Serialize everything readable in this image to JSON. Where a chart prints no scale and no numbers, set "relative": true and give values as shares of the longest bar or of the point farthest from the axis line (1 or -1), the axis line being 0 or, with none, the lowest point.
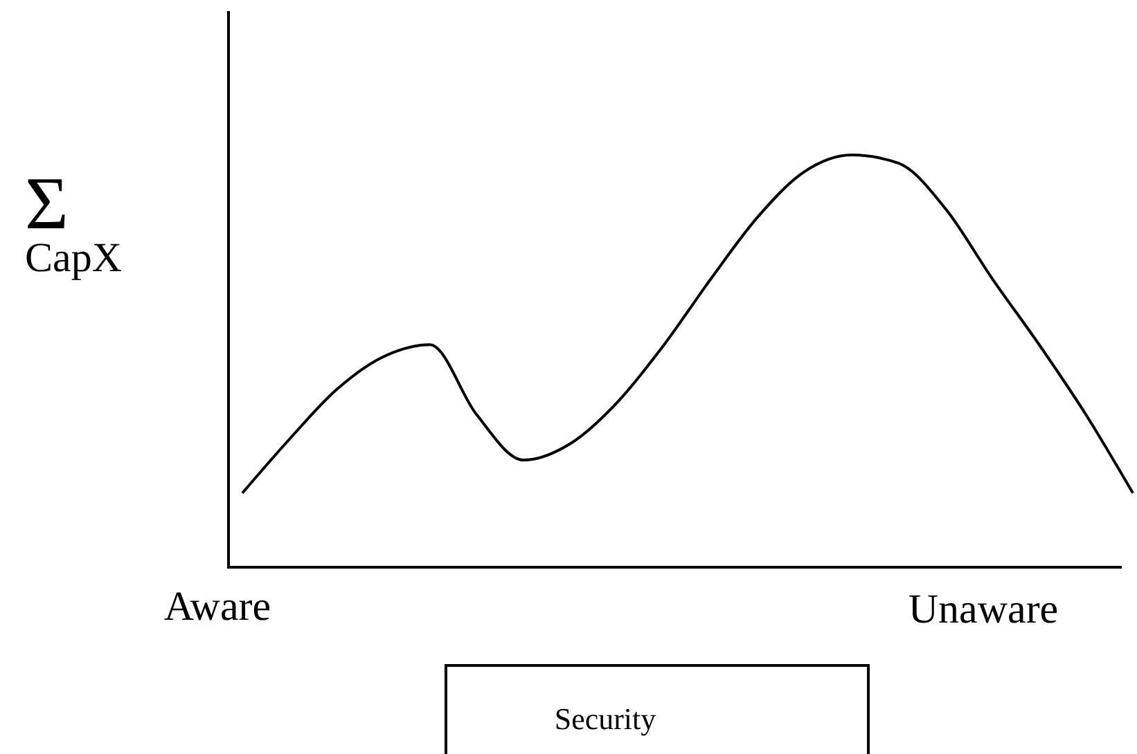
{
  "chart_data": {
    "type": "line",
    "relative": true,
    "ylabel": "Σ CapX",
    "categories": [
      null,
      null,
      null,
      null,
      null,
      null,
      null,
      null,
      null,
      null,
      null,
      null,
      null,
      null,
      null,
      null,
      null,
      null,
      null,
      null
    ],
    "series": [
      {
        "color": "#000000",
        "values": [
          0.18,
          0.31,
          0.43,
          0.51,
          0.54,
          0.37,
          0.26,
          0.3,
          0.4,
          0.54,
          0.7,
          0.85,
          0.96,
          1,
          0.98,
          0.87,
          0.7,
          0.54,
          0.37,
          0.18
        ]
      }
    ],
    "annotations": [
      "Aware",
      "Unaware",
      "Security"
    ],
    "line_style": "solid"
  }
}
